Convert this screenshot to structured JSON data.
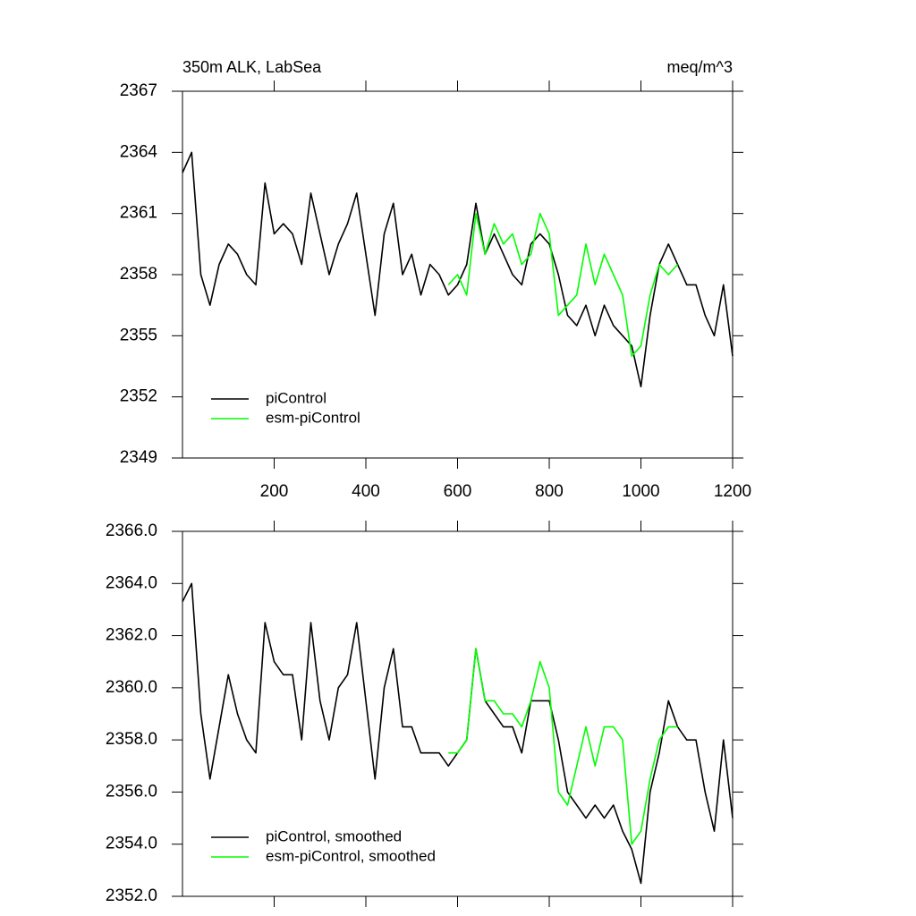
{
  "chart_data": [
    {
      "type": "line",
      "title": "350m ALK, LabSea",
      "units": "meq/m^3",
      "xlim": [
        0,
        1200
      ],
      "xticks": [
        200,
        400,
        600,
        800,
        1000,
        1200
      ],
      "xticklabels": true,
      "ylim": [
        2349,
        2367
      ],
      "yticks": [
        2349,
        2352,
        2355,
        2358,
        2361,
        2364,
        2367
      ],
      "legend": "lower left",
      "series": [
        {
          "name": "piControl",
          "color": "#000000",
          "x": [
            0,
            20,
            40,
            60,
            80,
            100,
            120,
            140,
            160,
            180,
            200,
            220,
            240,
            260,
            280,
            300,
            320,
            340,
            360,
            380,
            400,
            420,
            440,
            460,
            480,
            500,
            520,
            540,
            560,
            580,
            600,
            620,
            640,
            660,
            680,
            700,
            720,
            740,
            760,
            780,
            800,
            820,
            840,
            860,
            880,
            900,
            920,
            940,
            960,
            980,
            1000,
            1020,
            1040,
            1060,
            1080,
            1100,
            1120,
            1140,
            1160,
            1180,
            1200
          ],
          "values": [
            2363,
            2364,
            2358,
            2356.5,
            2358.5,
            2359.5,
            2359,
            2358,
            2357.5,
            2362.5,
            2360,
            2360.5,
            2360,
            2358.5,
            2362,
            2360,
            2358,
            2359.5,
            2360.5,
            2362,
            2359,
            2356,
            2360,
            2361.5,
            2358,
            2359,
            2357,
            2358.5,
            2358,
            2357,
            2357.5,
            2358.5,
            2361.5,
            2359,
            2360,
            2359,
            2358,
            2357.5,
            2359.5,
            2360,
            2359.5,
            2358,
            2356,
            2355.5,
            2356.5,
            2355,
            2356.5,
            2355.5,
            2355,
            2354.5,
            2352.5,
            2356,
            2358.5,
            2359.5,
            2358.5,
            2357.5,
            2357.5,
            2356,
            2355,
            2357.5,
            2354
          ]
        },
        {
          "name": "esm-piControl",
          "color": "#00ff00",
          "x": [
            580,
            600,
            620,
            640,
            660,
            680,
            700,
            720,
            740,
            760,
            780,
            800,
            820,
            840,
            860,
            880,
            900,
            920,
            940,
            960,
            980,
            1000,
            1020,
            1040,
            1060,
            1080
          ],
          "values": [
            2357.5,
            2358,
            2357,
            2361,
            2359,
            2360.5,
            2359.5,
            2360,
            2358.5,
            2359,
            2361,
            2360,
            2356,
            2356.5,
            2357,
            2359.5,
            2357.5,
            2359,
            2358,
            2357,
            2354,
            2354.5,
            2357,
            2358.5,
            2358,
            2358.5
          ]
        }
      ]
    },
    {
      "type": "line",
      "xlim": [
        0,
        1200
      ],
      "xticks": [
        200,
        400,
        600,
        800,
        1000,
        1200
      ],
      "xticklabels": false,
      "ylim": [
        2352,
        2366
      ],
      "yticks": [
        {
          "value": 2352,
          "label": "2352.0"
        },
        {
          "value": 2354,
          "label": "2354.0"
        },
        {
          "value": 2356,
          "label": "2356.0"
        },
        {
          "value": 2358,
          "label": "2358.0"
        },
        {
          "value": 2360,
          "label": "2360.0"
        },
        {
          "value": 2362,
          "label": "2362.0"
        },
        {
          "value": 2364,
          "label": "2364.0"
        },
        {
          "value": 2366,
          "label": "2366.0"
        }
      ],
      "legend": "lower left",
      "series": [
        {
          "name": "piControl, smoothed",
          "color": "#000000",
          "x": [
            0,
            20,
            40,
            60,
            80,
            100,
            120,
            140,
            160,
            180,
            200,
            220,
            240,
            260,
            280,
            300,
            320,
            340,
            360,
            380,
            400,
            420,
            440,
            460,
            480,
            500,
            520,
            540,
            560,
            580,
            600,
            620,
            640,
            660,
            680,
            700,
            720,
            740,
            760,
            780,
            800,
            820,
            840,
            860,
            880,
            900,
            920,
            940,
            960,
            980,
            1000,
            1020,
            1040,
            1060,
            1080,
            1100,
            1120,
            1140,
            1160,
            1180,
            1200
          ],
          "values": [
            2363.3,
            2364,
            2359,
            2356.5,
            2358.5,
            2360.5,
            2359,
            2358,
            2357.5,
            2362.5,
            2361,
            2360.5,
            2360.5,
            2358,
            2362.5,
            2359.5,
            2358,
            2360,
            2360.5,
            2362.5,
            2359.5,
            2356.5,
            2360,
            2361.5,
            2358.5,
            2358.5,
            2357.5,
            2357.5,
            2357.5,
            2357,
            2357.5,
            2358,
            2361.5,
            2359.5,
            2359,
            2358.5,
            2358.5,
            2357.5,
            2359.5,
            2359.5,
            2359.5,
            2358,
            2356,
            2355.5,
            2355,
            2355.5,
            2355,
            2355.5,
            2354.5,
            2353.8,
            2352.5,
            2356,
            2357.5,
            2359.5,
            2358.5,
            2358,
            2358,
            2356,
            2354.5,
            2358,
            2355
          ]
        },
        {
          "name": "esm-piControl, smoothed",
          "color": "#00ff00",
          "x": [
            580,
            600,
            620,
            640,
            660,
            680,
            700,
            720,
            740,
            760,
            780,
            800,
            820,
            840,
            860,
            880,
            900,
            920,
            940,
            960,
            980,
            1000,
            1020,
            1040,
            1060,
            1080
          ],
          "values": [
            2357.5,
            2357.5,
            2358,
            2361.5,
            2359.5,
            2359.5,
            2359,
            2359,
            2358.5,
            2359.5,
            2361,
            2360,
            2356,
            2355.5,
            2357,
            2358.5,
            2357,
            2358.5,
            2358.5,
            2358,
            2354,
            2354.5,
            2356.5,
            2358,
            2358.5,
            2358.5
          ]
        }
      ]
    }
  ]
}
